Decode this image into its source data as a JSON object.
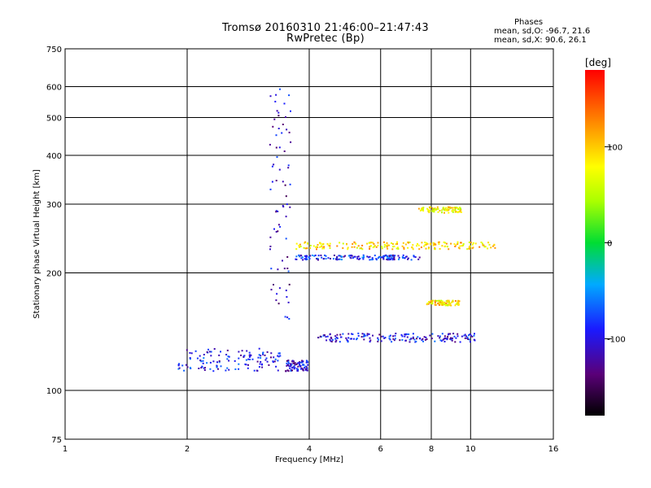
{
  "header": {
    "title_line1": "Tromsø 20160310 21:46:00–21:47:43",
    "title_line2": "RwPretec (Bp)"
  },
  "stats": {
    "heading": "Phases",
    "line_o": "mean, sd,O: -96.7, 21.6",
    "line_x": "mean, sd,X:  90.6, 26.1"
  },
  "colorbar": {
    "unit_label": "[deg]",
    "ticks": [
      "100",
      "0",
      "-100"
    ],
    "tick_values": [
      100,
      0,
      -100
    ],
    "range": [
      -180,
      180
    ]
  },
  "chart_data": {
    "type": "scatter",
    "title": "Tromsø 20160310 21:46:00–21:47:43",
    "subtitle": "RwPretec (Bp)",
    "xlabel": "Frequency [MHz]",
    "ylabel": "Stationary phase Virtual Height [km]",
    "xscale": "log",
    "yscale": "log",
    "xlim": [
      1,
      16
    ],
    "ylim": [
      75,
      750
    ],
    "x_ticks": [
      1,
      2,
      4,
      6,
      8,
      10,
      16
    ],
    "y_ticks": [
      75,
      100,
      200,
      300,
      400,
      500,
      600,
      750
    ],
    "grid": true,
    "color_encoding": "phase [deg]",
    "traces": [
      {
        "x_range": [
          1.9,
          3.4
        ],
        "h_range": [
          112,
          128
        ],
        "phase": -95
      },
      {
        "x_range": [
          3.2,
          3.6
        ],
        "h_range": [
          150,
          600
        ],
        "phase": -110
      },
      {
        "x_range": [
          3.5,
          4.0
        ],
        "h_range": [
          112,
          120
        ],
        "phase": -105
      },
      {
        "x_range": [
          4.2,
          10.5
        ],
        "h_range": [
          133,
          140
        ],
        "phase": -100
      },
      {
        "x_range": [
          3.7,
          11.5
        ],
        "h_range": [
          230,
          240
        ],
        "phase": 95
      },
      {
        "x_range": [
          3.7,
          7.5
        ],
        "h_range": [
          216,
          222
        ],
        "phase": -90
      },
      {
        "x_range": [
          7.4,
          9.5
        ],
        "h_range": [
          285,
          295
        ],
        "phase": 80
      },
      {
        "x_range": [
          7.8,
          9.4
        ],
        "h_range": [
          165,
          170
        ],
        "phase": 90
      }
    ]
  }
}
